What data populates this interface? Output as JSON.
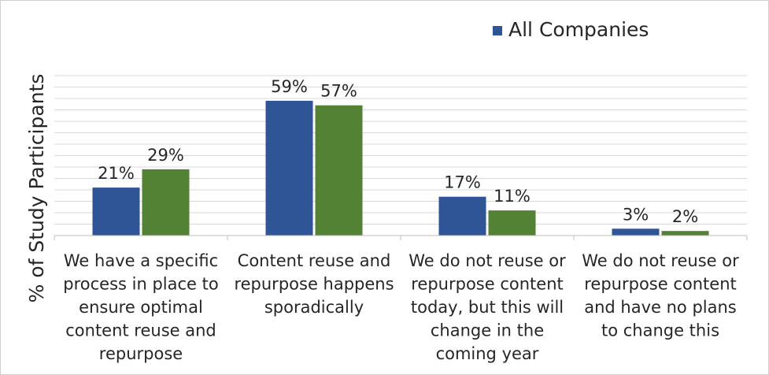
{
  "chart_data": {
    "type": "bar",
    "ylabel": "% of Study Participants",
    "xlabel": "",
    "ylim": [
      0,
      70
    ],
    "grid": true,
    "legend_position": "top-right",
    "categories": [
      [
        "We have a specific",
        "process in place to",
        "ensure optimal",
        "content reuse and",
        "repurpose"
      ],
      [
        "Content reuse and",
        "repurpose happens",
        "sporadically"
      ],
      [
        "We do not reuse or",
        "repurpose content",
        "today, but this will",
        "change in the",
        "coming year"
      ],
      [
        "We do not reuse or",
        "repurpose content",
        "and have no plans",
        "to change this"
      ]
    ],
    "series": [
      {
        "name": "All Companies",
        "color": "#2f5597",
        "values": [
          21,
          59,
          17,
          3
        ],
        "labels": [
          "21%",
          "59%",
          "17%",
          "3%"
        ]
      },
      {
        "color": "#548235",
        "values": [
          29,
          57,
          11,
          2
        ],
        "labels": [
          "29%",
          "57%",
          "11%",
          "2%"
        ]
      }
    ]
  }
}
